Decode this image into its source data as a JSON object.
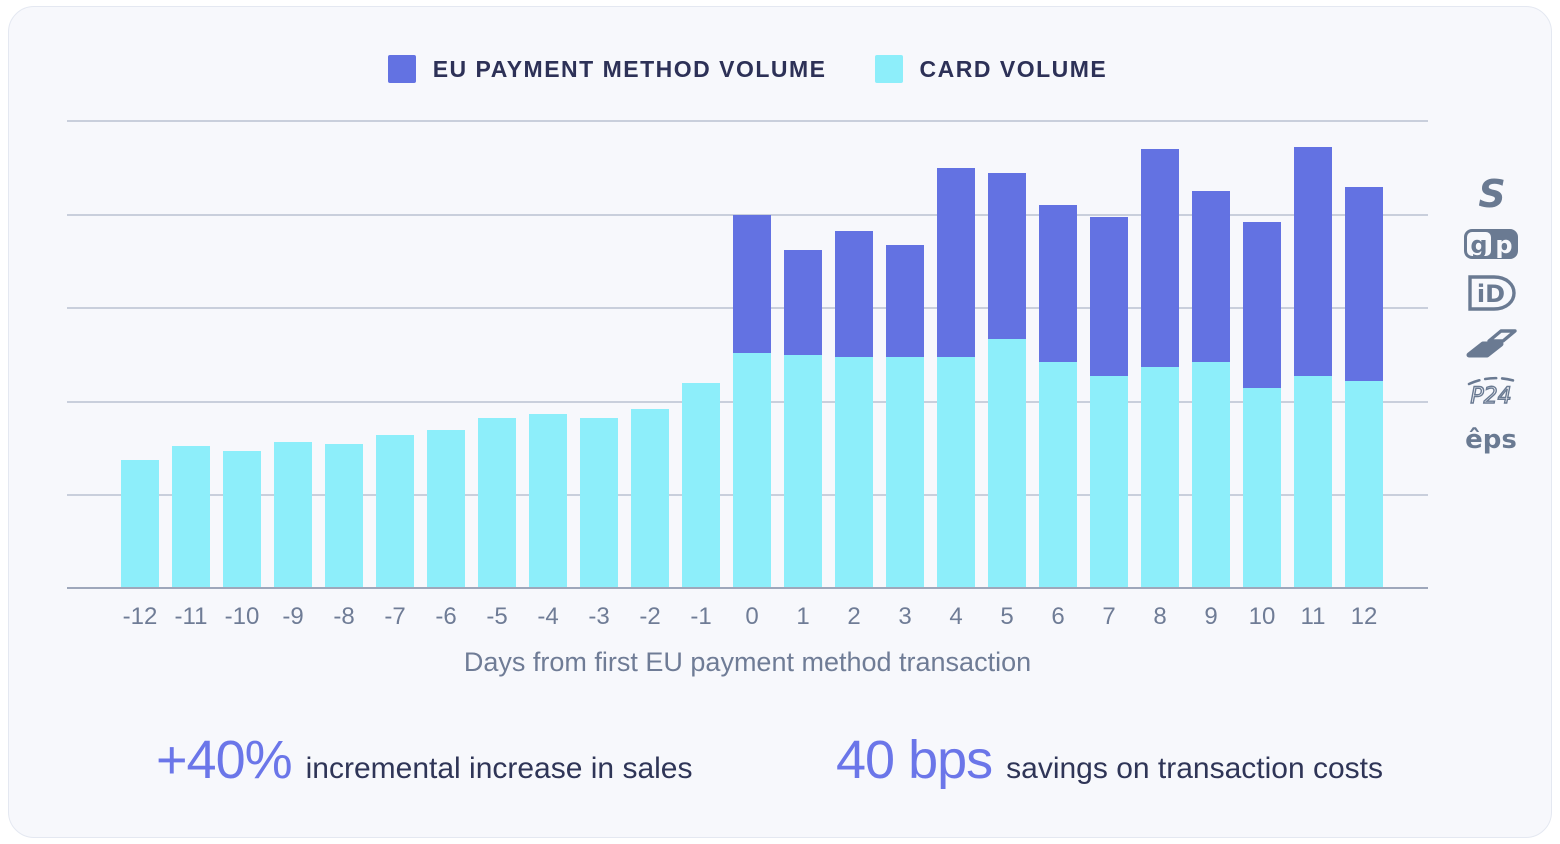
{
  "legend": [
    {
      "label": "EU PAYMENT METHOD VOLUME",
      "color": "#6372E2"
    },
    {
      "label": "CARD VOLUME",
      "color": "#8DEEFA"
    }
  ],
  "chart_data": {
    "type": "bar",
    "stacked": true,
    "categories": [
      "-12",
      "-11",
      "-10",
      "-9",
      "-8",
      "-7",
      "-6",
      "-5",
      "-4",
      "-3",
      "-2",
      "-1",
      "0",
      "1",
      "2",
      "3",
      "4",
      "5",
      "6",
      "7",
      "8",
      "9",
      "10",
      "11",
      "12"
    ],
    "series": [
      {
        "name": "CARD VOLUME",
        "color": "#8DEEFA",
        "values": [
          27.5,
          30.5,
          29.5,
          31.5,
          31,
          33,
          34,
          36.5,
          37.5,
          36.5,
          38.5,
          44,
          50.5,
          50,
          49.5,
          49.5,
          49.5,
          53.5,
          48.5,
          45.5,
          47.5,
          48.5,
          43,
          45.5,
          44.5
        ]
      },
      {
        "name": "EU PAYMENT METHOD VOLUME",
        "color": "#6372E2",
        "values": [
          0,
          0,
          0,
          0,
          0,
          0,
          0,
          0,
          0,
          0,
          0,
          0,
          29.5,
          22.5,
          27,
          24,
          40.5,
          35.5,
          33.5,
          34,
          46.5,
          36.5,
          35.5,
          49,
          41.5
        ]
      }
    ],
    "title": "",
    "xlabel": "Days from first EU payment method transaction",
    "ylabel": "",
    "ylim": [
      0,
      100
    ],
    "gridlines": [
      0,
      20,
      40,
      60,
      80,
      100
    ],
    "grid": "horizontal",
    "y_tick_labels_visible": false,
    "legend_position": "top"
  },
  "payment_icons": [
    {
      "name": "sofort",
      "glyph": "S"
    },
    {
      "name": "giropay",
      "glyph_left": "g",
      "glyph_right": "p"
    },
    {
      "name": "ideal",
      "glyph": "iD"
    },
    {
      "name": "bancontact",
      "glyph": ""
    },
    {
      "name": "przelewy24",
      "glyph": "P24"
    },
    {
      "name": "eps",
      "glyph": "êps"
    }
  ],
  "stats": [
    {
      "value": "+40%",
      "label": "incremental increase in sales"
    },
    {
      "value": "40 bps",
      "label": "savings on transaction costs"
    }
  ],
  "colors": {
    "eu_bar": "#6372E2",
    "card_bar": "#8DEEFA",
    "accent_text": "#6B76E9",
    "dark_text": "#2D3157",
    "muted_text": "#6F7C96",
    "icon": "#6A7A92",
    "gridline": "#C9CFDC",
    "axis_line": "#9EA7BB",
    "card_bg": "#F7F8FC",
    "page_bg": "#FFFFFF"
  }
}
